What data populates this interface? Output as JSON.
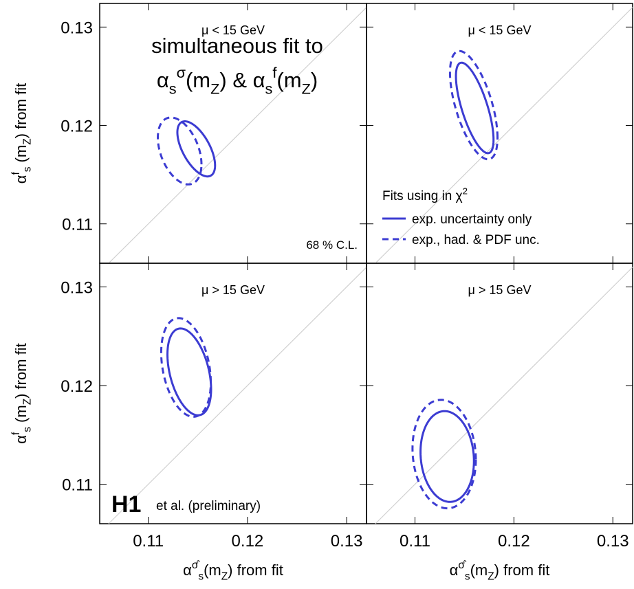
{
  "chart_data": [
    {
      "type": "ellipse",
      "title": "μ < 15 GeV",
      "xlim": [
        0.1051,
        0.132
      ],
      "ylim": [
        0.106,
        0.1324
      ],
      "xticks": [
        0.11,
        0.12,
        0.13
      ],
      "yticks": [
        0.11,
        0.12,
        0.13
      ],
      "xtick_labels": false,
      "ytick_labels": true,
      "diagonal": true,
      "ylabel": [
        {
          "text": "α"
        },
        {
          "text": "f",
          "sup": true
        },
        {
          "text": "s",
          "sub": true
        },
        {
          "text": " (m"
        },
        {
          "text": "Z",
          "sub": true
        },
        {
          "text": ") from fit"
        }
      ],
      "annotation": [
        [
          {
            "text": "simultaneous fit to"
          }
        ],
        [
          {
            "text": "α"
          },
          {
            "text": "s",
            "sub": true
          },
          {
            "text": "σ",
            "sup": true
          },
          {
            "text": "(m"
          },
          {
            "text": "Z",
            "sub": true
          },
          {
            "text": ") & α"
          },
          {
            "text": "s",
            "sub": true
          },
          {
            "text": "f",
            "sup": true
          },
          {
            "text": "(m"
          },
          {
            "text": "Z",
            "sub": true
          },
          {
            "text": ")"
          }
        ]
      ],
      "note": "68 % C.L.",
      "series": [
        {
          "line": "solid",
          "color": "#3c3cd2",
          "center": [
            0.11483,
            0.11762
          ],
          "half_width": [
            0.0019,
            0.0028
          ],
          "correlation": -0.6
        },
        {
          "line": "dashed",
          "color": "#3c3cd2",
          "center": [
            0.11316,
            0.11741
          ],
          "half_width": [
            0.0022,
            0.0034
          ],
          "correlation": -0.4
        }
      ]
    },
    {
      "type": "ellipse",
      "title": "μ < 15 GeV",
      "xlim": [
        0.1051,
        0.132
      ],
      "ylim": [
        0.106,
        0.1324
      ],
      "xticks": [
        0.11,
        0.12,
        0.13
      ],
      "yticks": [
        0.11,
        0.12,
        0.13
      ],
      "xtick_labels": false,
      "ytick_labels": false,
      "diagonal": true,
      "legend_title": [
        {
          "text": "Fits using in χ"
        },
        {
          "text": "2",
          "sup": true
        }
      ],
      "series": [
        {
          "name": "exp. uncertainty only",
          "line": "solid",
          "color": "#3c3cd2",
          "center": [
            0.11604,
            0.12178
          ],
          "half_width": [
            0.0019,
            0.0046
          ],
          "correlation": -0.7
        },
        {
          "name": "exp., had. & PDF unc.",
          "line": "dashed",
          "color": "#3c3cd2",
          "center": [
            0.11594,
            0.12206
          ],
          "half_width": [
            0.0024,
            0.0055
          ],
          "correlation": -0.6
        }
      ]
    },
    {
      "type": "ellipse",
      "title": "μ > 15 GeV",
      "xlim": [
        0.1051,
        0.132
      ],
      "ylim": [
        0.106,
        0.1324
      ],
      "xticks": [
        0.11,
        0.12,
        0.13
      ],
      "yticks": [
        0.11,
        0.12,
        0.13
      ],
      "xtick_labels": true,
      "ytick_labels": true,
      "diagonal": true,
      "ylabel": [
        {
          "text": "α"
        },
        {
          "text": "f",
          "sup": true
        },
        {
          "text": "s",
          "sub": true
        },
        {
          "text": " (m"
        },
        {
          "text": "Z",
          "sub": true
        },
        {
          "text": ") from fit"
        }
      ],
      "xlabel": [
        {
          "text": "α"
        },
        {
          "text": "σ̂",
          "sup": true
        },
        {
          "text": "s",
          "sub": true
        },
        {
          "text": "(m"
        },
        {
          "text": "Z",
          "sub": true
        },
        {
          "text": ") from fit"
        }
      ],
      "logo": "H1",
      "logo_note": "et al. (preliminary)",
      "series": [
        {
          "line": "solid",
          "color": "#3c3cd2",
          "center": [
            0.11413,
            0.12139
          ],
          "half_width": [
            0.0022,
            0.0044
          ],
          "correlation": -0.4
        },
        {
          "line": "dashed",
          "color": "#3c3cd2",
          "center": [
            0.1138,
            0.12184
          ],
          "half_width": [
            0.0025,
            0.005
          ],
          "correlation": -0.3
        }
      ]
    },
    {
      "type": "ellipse",
      "title": "μ > 15 GeV",
      "xlim": [
        0.1051,
        0.132
      ],
      "ylim": [
        0.106,
        0.1324
      ],
      "xticks": [
        0.11,
        0.12,
        0.13
      ],
      "yticks": [
        0.11,
        0.12,
        0.13
      ],
      "xtick_labels": true,
      "ytick_labels": false,
      "diagonal": true,
      "xlabel": [
        {
          "text": "α"
        },
        {
          "text": "σ̂",
          "sup": true
        },
        {
          "text": "s",
          "sub": true
        },
        {
          "text": "(m"
        },
        {
          "text": "Z",
          "sub": true
        },
        {
          "text": ") from fit"
        }
      ],
      "series": [
        {
          "line": "solid",
          "color": "#3c3cd2",
          "center": [
            0.11326,
            0.11281
          ],
          "half_width": [
            0.0027,
            0.0046
          ],
          "correlation": -0.1
        },
        {
          "line": "dashed",
          "color": "#3c3cd2",
          "center": [
            0.11295,
            0.11306
          ],
          "half_width": [
            0.0032,
            0.0055
          ],
          "correlation": -0.1
        }
      ]
    }
  ]
}
